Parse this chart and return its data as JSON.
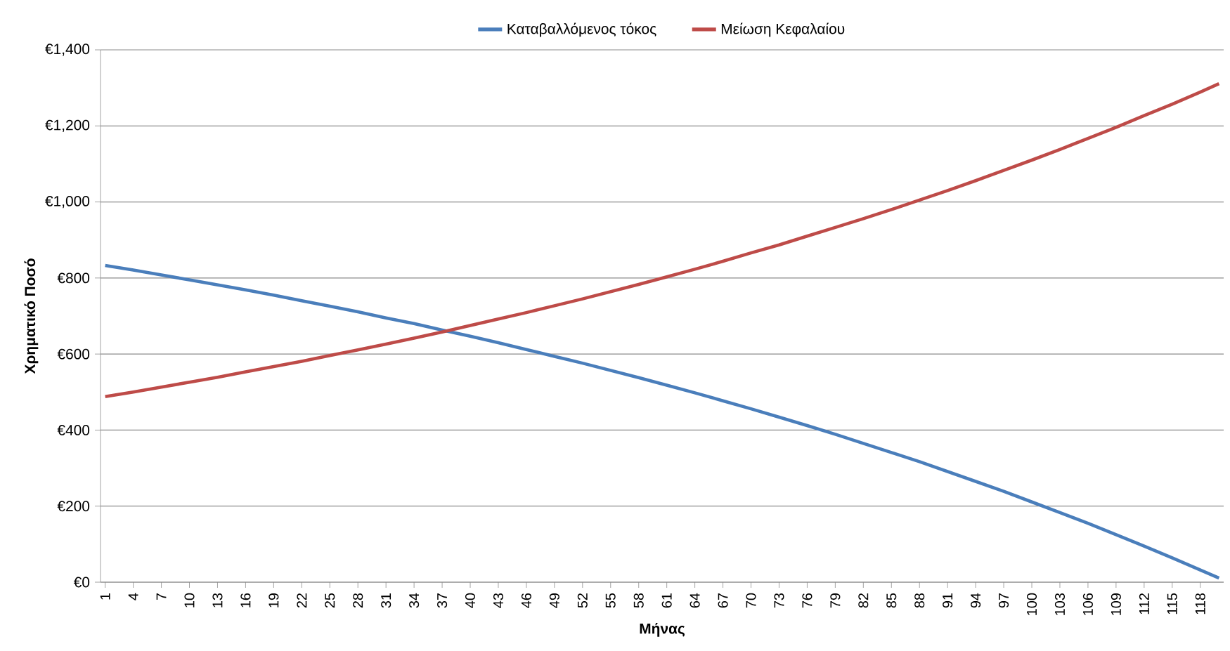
{
  "chart_data": {
    "type": "line",
    "xlabel": "Μήνας",
    "ylabel": "Χρηματικό Ποσό",
    "x": [
      1,
      4,
      7,
      10,
      13,
      16,
      19,
      22,
      25,
      28,
      31,
      34,
      37,
      40,
      43,
      46,
      49,
      52,
      55,
      58,
      61,
      64,
      67,
      70,
      73,
      76,
      79,
      82,
      85,
      88,
      91,
      94,
      97,
      100,
      103,
      106,
      109,
      112,
      115,
      118,
      120
    ],
    "series": [
      {
        "name": "Καταβαλλόμενος τόκος",
        "color": "#4a7ebb",
        "values": [
          833,
          821,
          808,
          795,
          782,
          769,
          755,
          740,
          726,
          711,
          695,
          680,
          663,
          647,
          630,
          612,
          594,
          576,
          557,
          538,
          518,
          498,
          477,
          456,
          434,
          412,
          389,
          365,
          341,
          317,
          291,
          265,
          239,
          211,
          183,
          155,
          125,
          95,
          64,
          32,
          11
        ]
      },
      {
        "name": "Μείωση Κεφαλαίου",
        "color": "#be4b48",
        "values": [
          488,
          500,
          513,
          526,
          539,
          553,
          567,
          581,
          596,
          611,
          626,
          642,
          658,
          675,
          692,
          709,
          727,
          745,
          764,
          783,
          803,
          823,
          844,
          866,
          887,
          910,
          933,
          956,
          980,
          1005,
          1030,
          1056,
          1083,
          1110,
          1138,
          1167,
          1196,
          1227,
          1257,
          1289,
          1311
        ]
      }
    ],
    "xlim": [
      0.5,
      120.5
    ],
    "xticks": [
      1,
      4,
      7,
      10,
      13,
      16,
      19,
      22,
      25,
      28,
      31,
      34,
      37,
      40,
      43,
      46,
      49,
      52,
      55,
      58,
      61,
      64,
      67,
      70,
      73,
      76,
      79,
      82,
      85,
      88,
      91,
      94,
      97,
      100,
      103,
      106,
      109,
      112,
      115,
      118
    ],
    "ylim": [
      0,
      1400
    ],
    "yticks": [
      {
        "value": 0,
        "label": "€0"
      },
      {
        "value": 200,
        "label": "€200"
      },
      {
        "value": 400,
        "label": "€400"
      },
      {
        "value": 600,
        "label": "€600"
      },
      {
        "value": 800,
        "label": "€800"
      },
      {
        "value": 1000,
        "label": "€1,000"
      },
      {
        "value": 1200,
        "label": "€1,200"
      },
      {
        "value": 1400,
        "label": "€1,400"
      }
    ],
    "grid": "y",
    "legend": "top",
    "marker": "none",
    "line_style": "solid"
  }
}
